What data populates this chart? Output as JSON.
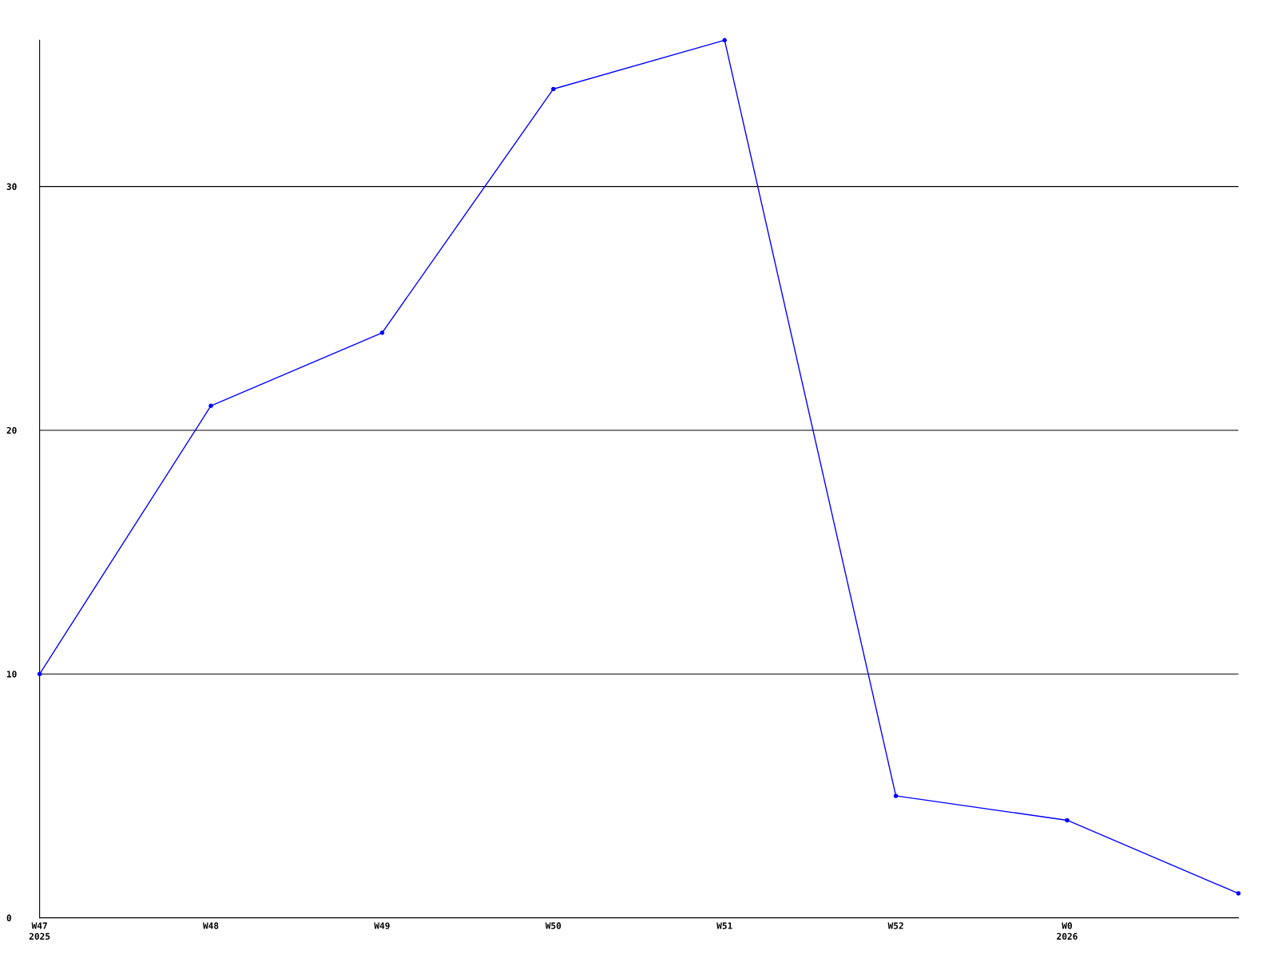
{
  "chart_data": {
    "type": "line",
    "categories": [
      "W47\n2025",
      "W48",
      "W49",
      "W50",
      "W51",
      "W52",
      "W0\n2026",
      null
    ],
    "series": [
      {
        "color": "#0000ff",
        "values": [
          10,
          21,
          24,
          34,
          36,
          5,
          4,
          1
        ]
      }
    ],
    "ylim": [
      0,
      36
    ],
    "yticks": [
      0,
      10,
      20,
      30
    ],
    "grid": "y",
    "marker": "circle",
    "legend": false
  }
}
